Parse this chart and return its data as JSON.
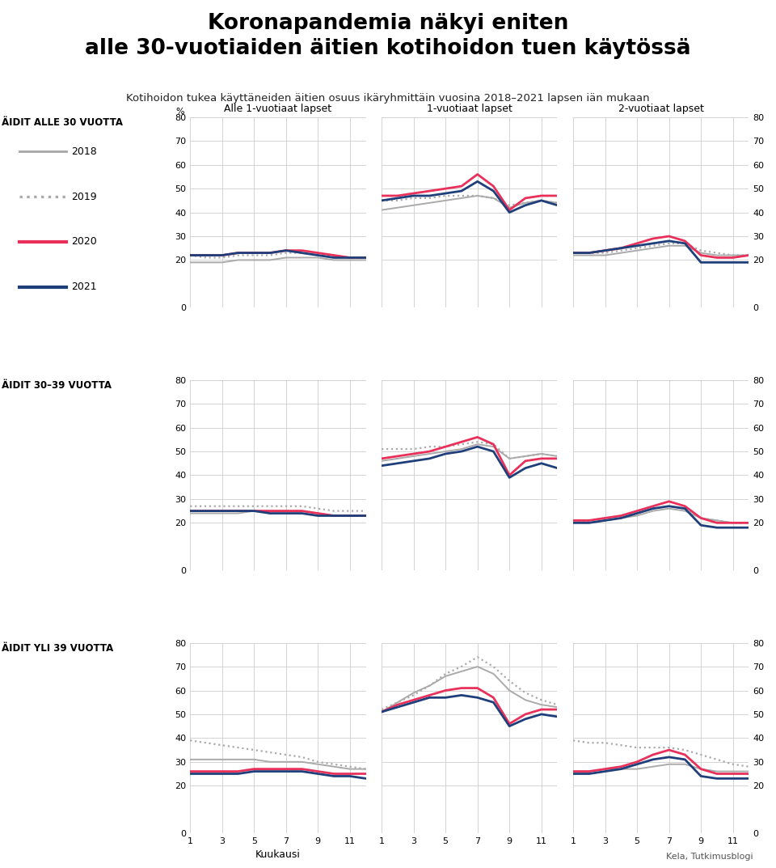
{
  "title": "Koronapandemia näkyi eniten\nalle 30-vuotiaiden äitien kotihoidon tuen käytössä",
  "subtitle": "Kotihoidon tukea käyttäneiden äitien osuus ikäryhmittäin vuosina 2018–2021 lapsen iän mukaan",
  "row_labels": [
    "ÄIDIT ALLE 30 VUOTTA",
    "ÄIDIT 30–39 VUOTTA",
    "ÄIDIT YLI 39 VUOTTA"
  ],
  "col_labels": [
    "Alle 1-vuotiaat lapset",
    "1-vuotiaat lapset",
    "2-vuotiaat lapset"
  ],
  "xlabel": "Kuukausi",
  "ylabel": "%",
  "months": [
    1,
    2,
    3,
    4,
    5,
    6,
    7,
    8,
    9,
    10,
    11,
    12
  ],
  "yticks": [
    0,
    20,
    30,
    40,
    50,
    60,
    70,
    80
  ],
  "source": "Kela, Tutkimusblogi",
  "line_styles": {
    "2018": {
      "color": "#aaaaaa",
      "linestyle": "solid",
      "linewidth": 1.4
    },
    "2019": {
      "color": "#aaaaaa",
      "linestyle": "dotted",
      "linewidth": 1.6
    },
    "2020": {
      "color": "#e8305a",
      "linestyle": "solid",
      "linewidth": 2.0
    },
    "2021": {
      "color": "#1f3f7a",
      "linestyle": "solid",
      "linewidth": 2.0
    }
  },
  "data": {
    "row0": {
      "col0": {
        "2018": [
          19,
          19,
          19,
          20,
          20,
          20,
          21,
          21,
          21,
          20,
          20,
          20
        ],
        "2019": [
          22,
          21,
          21,
          22,
          22,
          22,
          23,
          23,
          22,
          22,
          21,
          21
        ],
        "2020": [
          22,
          22,
          22,
          23,
          23,
          23,
          24,
          24,
          23,
          22,
          21,
          21
        ],
        "2021": [
          22,
          22,
          22,
          23,
          23,
          23,
          24,
          23,
          22,
          21,
          21,
          21
        ]
      },
      "col1": {
        "2018": [
          41,
          42,
          43,
          44,
          45,
          46,
          47,
          46,
          42,
          44,
          45,
          44
        ],
        "2019": [
          45,
          45,
          46,
          46,
          47,
          47,
          47,
          46,
          43,
          44,
          45,
          44
        ],
        "2020": [
          47,
          47,
          48,
          49,
          50,
          51,
          56,
          51,
          41,
          46,
          47,
          47
        ],
        "2021": [
          45,
          46,
          47,
          47,
          48,
          49,
          53,
          49,
          40,
          43,
          45,
          43
        ]
      },
      "col2": {
        "2018": [
          22,
          22,
          22,
          23,
          24,
          25,
          26,
          26,
          23,
          22,
          22,
          22
        ],
        "2019": [
          23,
          23,
          23,
          24,
          25,
          26,
          27,
          27,
          24,
          23,
          22,
          22
        ],
        "2020": [
          23,
          23,
          24,
          25,
          27,
          29,
          30,
          28,
          22,
          21,
          21,
          22
        ],
        "2021": [
          23,
          23,
          24,
          25,
          26,
          27,
          28,
          27,
          19,
          19,
          19,
          19
        ]
      }
    },
    "row1": {
      "col0": {
        "2018": [
          24,
          24,
          24,
          24,
          25,
          25,
          25,
          25,
          24,
          23,
          23,
          23
        ],
        "2019": [
          27,
          27,
          27,
          27,
          27,
          27,
          27,
          27,
          26,
          25,
          25,
          25
        ],
        "2020": [
          25,
          25,
          25,
          25,
          25,
          25,
          25,
          25,
          24,
          23,
          23,
          23
        ],
        "2021": [
          25,
          25,
          25,
          25,
          25,
          24,
          24,
          24,
          23,
          23,
          23,
          23
        ]
      },
      "col1": {
        "2018": [
          46,
          47,
          48,
          49,
          50,
          51,
          53,
          52,
          47,
          48,
          49,
          48
        ],
        "2019": [
          51,
          51,
          51,
          52,
          52,
          53,
          54,
          53,
          47,
          48,
          49,
          48
        ],
        "2020": [
          47,
          48,
          49,
          50,
          52,
          54,
          56,
          53,
          40,
          46,
          47,
          47
        ],
        "2021": [
          44,
          45,
          46,
          47,
          49,
          50,
          52,
          50,
          39,
          43,
          45,
          43
        ]
      },
      "col2": {
        "2018": [
          20,
          20,
          21,
          22,
          23,
          25,
          26,
          25,
          22,
          21,
          20,
          20
        ],
        "2019": [
          21,
          21,
          22,
          23,
          24,
          26,
          27,
          26,
          22,
          21,
          20,
          20
        ],
        "2020": [
          21,
          21,
          22,
          23,
          25,
          27,
          29,
          27,
          22,
          20,
          20,
          20
        ],
        "2021": [
          20,
          20,
          21,
          22,
          24,
          26,
          27,
          26,
          19,
          18,
          18,
          18
        ]
      }
    },
    "row2": {
      "col0": {
        "2018": [
          31,
          31,
          31,
          31,
          31,
          30,
          30,
          30,
          29,
          28,
          27,
          27
        ],
        "2019": [
          39,
          38,
          37,
          36,
          35,
          34,
          33,
          32,
          30,
          29,
          28,
          27
        ],
        "2020": [
          26,
          26,
          26,
          26,
          27,
          27,
          27,
          27,
          26,
          25,
          25,
          25
        ],
        "2021": [
          25,
          25,
          25,
          25,
          26,
          26,
          26,
          26,
          25,
          24,
          24,
          23
        ]
      },
      "col1": {
        "2018": [
          51,
          55,
          59,
          62,
          66,
          68,
          70,
          67,
          60,
          56,
          54,
          53
        ],
        "2019": [
          52,
          55,
          58,
          62,
          67,
          70,
          74,
          70,
          64,
          59,
          56,
          54
        ],
        "2020": [
          51,
          54,
          56,
          58,
          60,
          61,
          61,
          57,
          46,
          50,
          52,
          52
        ],
        "2021": [
          51,
          53,
          55,
          57,
          57,
          58,
          57,
          55,
          45,
          48,
          50,
          49
        ]
      },
      "col2": {
        "2018": [
          26,
          26,
          27,
          27,
          27,
          28,
          29,
          29,
          27,
          26,
          26,
          26
        ],
        "2019": [
          39,
          38,
          38,
          37,
          36,
          36,
          36,
          35,
          33,
          31,
          29,
          28
        ],
        "2020": [
          26,
          26,
          27,
          28,
          30,
          33,
          35,
          33,
          27,
          25,
          25,
          25
        ],
        "2021": [
          25,
          25,
          26,
          27,
          29,
          31,
          32,
          31,
          24,
          23,
          23,
          23
        ]
      }
    }
  }
}
